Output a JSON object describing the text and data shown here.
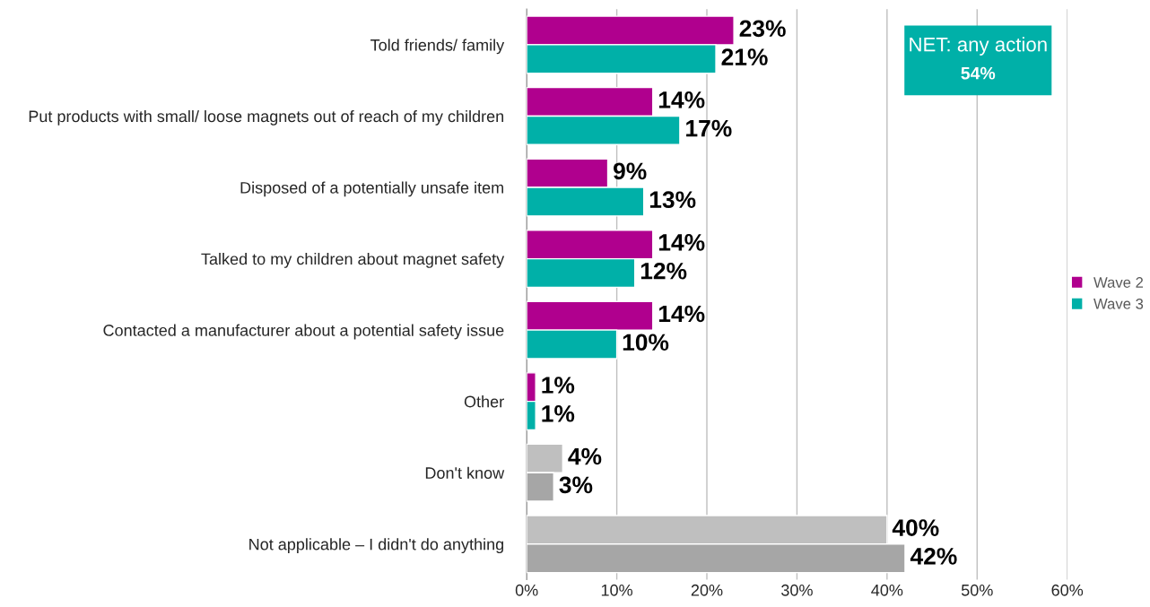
{
  "chart_data": {
    "type": "bar",
    "orientation": "horizontal",
    "categories": [
      "Told friends/ family",
      "Put products with small/ loose magnets out of reach of my children",
      "Disposed of a potentially unsafe item",
      "Talked to my children about magnet safety",
      "Contacted a manufacturer about a potential safety issue",
      "Other",
      "Don't know",
      "Not applicable – I didn't do anything"
    ],
    "series": [
      {
        "name": "Wave 2",
        "color": "#b0008e",
        "colors": [
          "#b0008e",
          "#b0008e",
          "#b0008e",
          "#b0008e",
          "#b0008e",
          "#b0008e",
          "#bfbfbf",
          "#bfbfbf"
        ],
        "values": [
          23,
          14,
          9,
          14,
          14,
          1,
          4,
          40
        ],
        "value_labels": [
          "23%",
          "14%",
          "9%",
          "14%",
          "14%",
          "1%",
          "4%",
          "40%"
        ]
      },
      {
        "name": "Wave 3",
        "color": "#00b0a8",
        "colors": [
          "#00b0a8",
          "#00b0a8",
          "#00b0a8",
          "#00b0a8",
          "#00b0a8",
          "#00b0a8",
          "#a6a6a6",
          "#a6a6a6"
        ],
        "values": [
          21,
          17,
          13,
          12,
          10,
          1,
          3,
          42
        ],
        "value_labels": [
          "21%",
          "17%",
          "13%",
          "12%",
          "10%",
          "1%",
          "3%",
          "42%"
        ]
      }
    ],
    "xlim": [
      0,
      60
    ],
    "xticks": [
      {
        "value": 0,
        "label": "0%"
      },
      {
        "value": 10,
        "label": "10%"
      },
      {
        "value": 20,
        "label": "20%"
      },
      {
        "value": 30,
        "label": "30%"
      },
      {
        "value": 40,
        "label": "40%"
      },
      {
        "value": 50,
        "label": "50%"
      },
      {
        "value": 60,
        "label": "60%"
      }
    ],
    "grid": "x",
    "legend": "right",
    "annotations": [
      "NET: any action",
      "54%"
    ]
  }
}
